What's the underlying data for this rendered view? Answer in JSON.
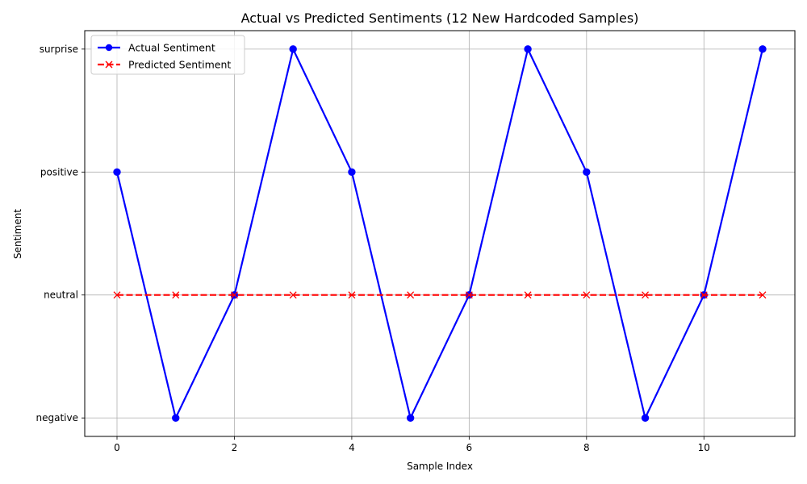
{
  "chart_data": {
    "type": "line",
    "title": "Actual vs Predicted Sentiments (12 New Hardcoded Samples)",
    "xlabel": "Sample Index",
    "ylabel": "Sentiment",
    "x": [
      0,
      1,
      2,
      3,
      4,
      5,
      6,
      7,
      8,
      9,
      10,
      11
    ],
    "xlim": [
      -0.55,
      11.55
    ],
    "ylim": [
      -0.15,
      3.15
    ],
    "x_ticks": [
      0,
      2,
      4,
      6,
      8,
      10
    ],
    "x_tick_labels": [
      "0",
      "2",
      "4",
      "6",
      "8",
      "10"
    ],
    "y_ticks": [
      0,
      1,
      2,
      3
    ],
    "y_tick_labels": [
      "negative",
      "neutral",
      "positive",
      "surprise"
    ],
    "grid": true,
    "legend_position": "top-left",
    "series": [
      {
        "name": "Actual Sentiment",
        "color": "#0000ff",
        "marker": "circle",
        "linestyle": "solid",
        "values": [
          2,
          0,
          1,
          3,
          2,
          0,
          1,
          3,
          2,
          0,
          1,
          3
        ]
      },
      {
        "name": "Predicted Sentiment",
        "color": "#ff0000",
        "marker": "x",
        "linestyle": "dashed",
        "values": [
          1,
          1,
          1,
          1,
          1,
          1,
          1,
          1,
          1,
          1,
          1,
          1
        ]
      }
    ]
  }
}
